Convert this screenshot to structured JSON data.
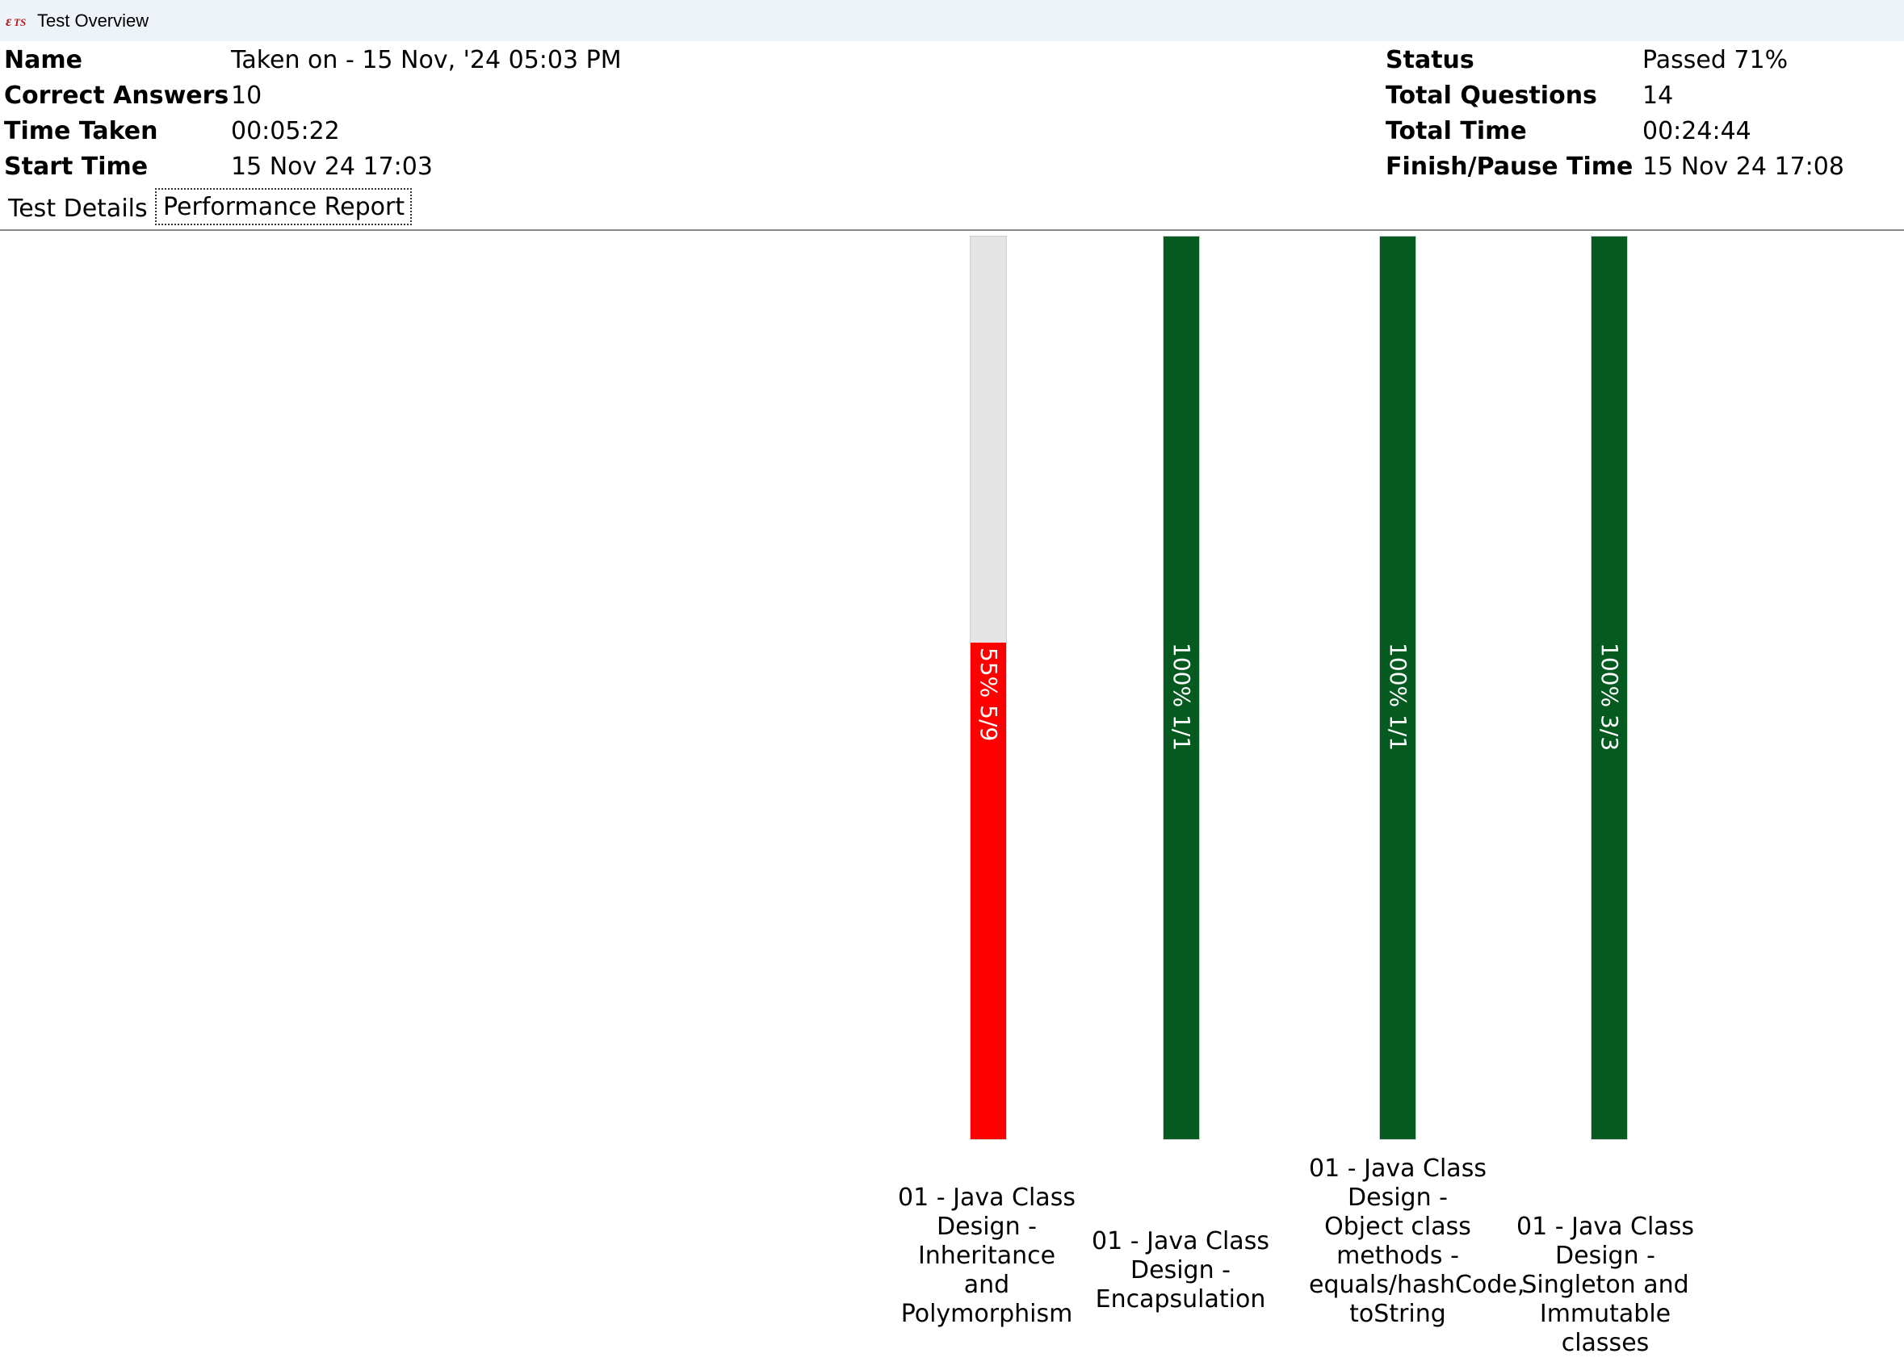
{
  "window": {
    "title": "Test Overview",
    "logo_icon": "ets-logo-icon"
  },
  "summary": {
    "name_label": "Name",
    "name_value": "Taken on - 15 Nov, '24 05:03 PM",
    "correct_label": "Correct Answers",
    "correct_value": "10",
    "time_taken_label": "Time Taken",
    "time_taken_value": "00:05:22",
    "start_label": "Start Time",
    "start_value": "15 Nov 24 17:03",
    "status_label": "Status",
    "status_value": "Passed 71%",
    "total_q_label": "Total Questions",
    "total_q_value": "14",
    "total_time_label": "Total Time",
    "total_time_value": "00:24:44",
    "finish_label": "Finish/Pause Time",
    "finish_value": "15 Nov 24 17:08"
  },
  "tabs": {
    "details": "Test Details",
    "performance": "Performance Report",
    "active": "performance"
  },
  "colors": {
    "fail": "#ff0000",
    "pass": "#055a1f",
    "track": "#e4e4e4"
  },
  "chart_data": {
    "type": "bar",
    "categories": [
      "01 - Java Class Design - Inheritance and Polymorphism",
      "01 - Java Class Design - Encapsulation",
      "01 - Java Class Design - Object class methods - equals/hashCode, toString",
      "01 - Java Class Design - Singleton and Immutable classes"
    ],
    "values": [
      55,
      100,
      100,
      100
    ],
    "correct": [
      5,
      1,
      1,
      3
    ],
    "total": [
      9,
      1,
      1,
      3
    ],
    "bar_labels": [
      "55% 5/9",
      "100% 1/1",
      "100% 1/1",
      "100% 3/3"
    ],
    "status": [
      "fail",
      "pass",
      "pass",
      "pass"
    ],
    "ylim": [
      0,
      100
    ]
  }
}
